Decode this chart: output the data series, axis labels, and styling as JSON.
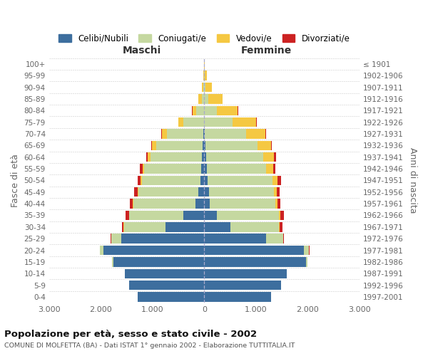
{
  "age_groups": [
    "0-4",
    "5-9",
    "10-14",
    "15-19",
    "20-24",
    "25-29",
    "30-34",
    "35-39",
    "40-44",
    "45-49",
    "50-54",
    "55-59",
    "60-64",
    "65-69",
    "70-74",
    "75-79",
    "80-84",
    "85-89",
    "90-94",
    "95-99",
    "100+"
  ],
  "birth_years": [
    "1997-2001",
    "1992-1996",
    "1987-1991",
    "1982-1986",
    "1977-1981",
    "1972-1976",
    "1967-1971",
    "1962-1966",
    "1957-1961",
    "1952-1956",
    "1947-1951",
    "1942-1946",
    "1937-1941",
    "1932-1936",
    "1927-1931",
    "1922-1926",
    "1917-1921",
    "1912-1916",
    "1907-1911",
    "1902-1906",
    "≤ 1901"
  ],
  "maschi": {
    "celibi": [
      1290,
      1450,
      1540,
      1760,
      1950,
      1600,
      750,
      400,
      170,
      120,
      80,
      60,
      40,
      30,
      15,
      0,
      0,
      0,
      0,
      0,
      0
    ],
    "coniugati": [
      0,
      0,
      0,
      20,
      60,
      200,
      800,
      1050,
      1200,
      1150,
      1130,
      1100,
      1000,
      900,
      700,
      400,
      150,
      50,
      20,
      5,
      0
    ],
    "vedovi": [
      0,
      0,
      0,
      0,
      0,
      0,
      5,
      5,
      10,
      15,
      20,
      30,
      50,
      80,
      100,
      100,
      80,
      60,
      20,
      10,
      5
    ],
    "divorziati": [
      0,
      0,
      0,
      5,
      10,
      15,
      30,
      60,
      60,
      70,
      60,
      50,
      30,
      20,
      10,
      5,
      5,
      0,
      0,
      0,
      0
    ]
  },
  "femmine": {
    "nubili": [
      1290,
      1480,
      1590,
      1970,
      1920,
      1200,
      500,
      250,
      110,
      90,
      70,
      50,
      40,
      30,
      15,
      0,
      0,
      0,
      0,
      0,
      0
    ],
    "coniugate": [
      0,
      0,
      0,
      30,
      100,
      320,
      950,
      1200,
      1270,
      1250,
      1250,
      1150,
      1100,
      1000,
      800,
      550,
      250,
      80,
      20,
      5,
      0
    ],
    "vedove": [
      0,
      0,
      0,
      0,
      5,
      5,
      10,
      20,
      35,
      60,
      100,
      130,
      200,
      260,
      360,
      450,
      400,
      280,
      130,
      50,
      15
    ],
    "divorziate": [
      0,
      0,
      0,
      0,
      10,
      20,
      55,
      70,
      60,
      60,
      70,
      40,
      50,
      20,
      20,
      10,
      5,
      0,
      0,
      0,
      0
    ]
  },
  "colors": {
    "celibi_nubili": "#3d6e9e",
    "coniugati": "#c5d8a0",
    "vedovi": "#f5c842",
    "divorziati": "#cc2222"
  },
  "xlim": 3000,
  "title": "Popolazione per età, sesso e stato civile - 2002",
  "subtitle": "COMUNE DI MOLFETTA (BA) - Dati ISTAT 1° gennaio 2002 - Elaborazione TUTTITALIA.IT",
  "legend_labels": [
    "Celibi/Nubili",
    "Coniugati/e",
    "Vedovi/e",
    "Divorziati/e"
  ],
  "ylabel_left": "Fasce di età",
  "ylabel_right": "Anni di nascita",
  "maschi_label": "Maschi",
  "femmine_label": "Femmine",
  "bg_color": "#ffffff",
  "grid_color": "#cccccc",
  "text_color": "#666666"
}
